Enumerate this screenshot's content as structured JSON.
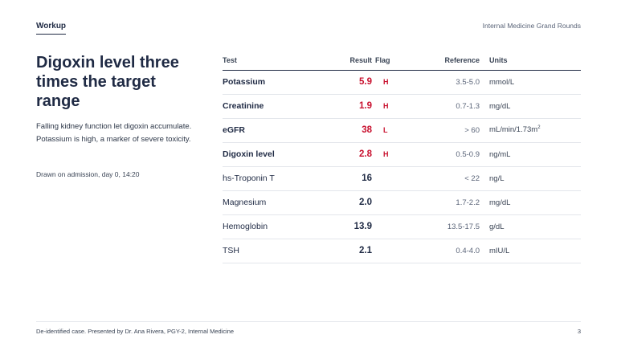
{
  "header": {
    "section": "Workup",
    "deck_title": "Internal Medicine Grand Rounds"
  },
  "main": {
    "headline": "Digoxin level three times the target range",
    "summary": "Falling kidney function let digoxin accumulate. Potassium is high, a marker of severe toxicity.",
    "timestamp": "Drawn on admission, day 0, 14:20"
  },
  "labs": {
    "columns": {
      "test": "Test",
      "result": "Result",
      "flag": "Flag",
      "reference": "Reference",
      "units": "Units"
    },
    "rows": [
      {
        "test": "Potassium",
        "result": "5.9",
        "flag": "H",
        "reference": "3.5-5.0",
        "units": "mmol/L"
      },
      {
        "test": "Creatinine",
        "result": "1.9",
        "flag": "H",
        "reference": "0.7-1.3",
        "units": "mg/dL"
      },
      {
        "test": "eGFR",
        "result": "38",
        "flag": "L",
        "reference": "> 60",
        "units": "mL/min/1.73m",
        "units_sup": "2"
      },
      {
        "test": "Digoxin level",
        "result": "2.8",
        "flag": "H",
        "reference": "0.5-0.9",
        "units": "ng/mL"
      },
      {
        "test": "hs-Troponin T",
        "result": "16",
        "flag": "",
        "reference": "< 22",
        "units": "ng/L"
      },
      {
        "test": "Magnesium",
        "result": "2.0",
        "flag": "",
        "reference": "1.7-2.2",
        "units": "mg/dL"
      },
      {
        "test": "Hemoglobin",
        "result": "13.9",
        "flag": "",
        "reference": "13.5-17.5",
        "units": "g/dL"
      },
      {
        "test": "TSH",
        "result": "2.1",
        "flag": "",
        "reference": "0.4-4.0",
        "units": "mIU/L"
      }
    ]
  },
  "footer": {
    "text": "De-identified case. Presented by Dr. Ana Rivera, PGY-2, Internal Medicine",
    "page": "3"
  },
  "colors": {
    "ink": "#1f2a44",
    "abnormal": "#c8102e",
    "rule": "#e3e6eb"
  }
}
